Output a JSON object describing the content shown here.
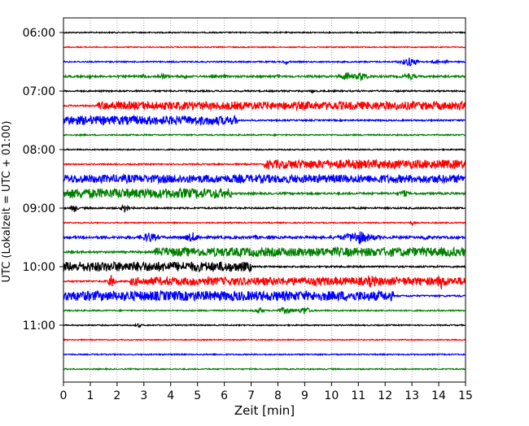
{
  "chart_data": {
    "type": "line",
    "title": "",
    "xlabel": "Zeit  [min]",
    "ylabel": "UTC (Lokalzeit = UTC + 01:00)",
    "xlim": [
      0,
      15
    ],
    "x_ticks": [
      "0",
      "1",
      "2",
      "3",
      "4",
      "5",
      "6",
      "7",
      "8",
      "9",
      "10",
      "11",
      "12",
      "13",
      "14",
      "15"
    ],
    "y_ticks": [
      "06:00",
      "07:00",
      "08:00",
      "09:00",
      "10:00",
      "11:00"
    ],
    "grid": {
      "x": "dotted",
      "y": false
    },
    "colors": [
      "#000000",
      "#ff0000",
      "#0000ff",
      "#008000"
    ],
    "traces": [
      {
        "time": "06:00",
        "color": "#000000",
        "base": 0.7,
        "events": []
      },
      {
        "time": "06:15",
        "color": "#ff0000",
        "base": 0.6,
        "events": []
      },
      {
        "time": "06:30",
        "color": "#0000ff",
        "base": 0.8,
        "events": [
          [
            8.3,
            0.15,
            3
          ],
          [
            12.9,
            0.3,
            6
          ],
          [
            13.1,
            0.2,
            4
          ],
          [
            13.9,
            0.15,
            3
          ],
          [
            14.3,
            0.1,
            3
          ]
        ]
      },
      {
        "time": "06:45",
        "color": "#008000",
        "base": 1.2,
        "events": [
          [
            1.0,
            0.1,
            3
          ],
          [
            3.0,
            0.15,
            3
          ],
          [
            3.7,
            0.2,
            4
          ],
          [
            4.5,
            0.15,
            3
          ],
          [
            6.0,
            0.12,
            3
          ],
          [
            8.0,
            0.1,
            3
          ],
          [
            9.2,
            0.1,
            3
          ],
          [
            10.6,
            0.3,
            6
          ],
          [
            11.1,
            0.3,
            6
          ],
          [
            12.9,
            0.25,
            5
          ]
        ]
      },
      {
        "time": "07:00",
        "color": "#000000",
        "base": 0.9,
        "events": [
          [
            9.3,
            0.12,
            2.5
          ]
        ]
      },
      {
        "time": "07:15",
        "color": "#ff0000",
        "base": 0.9,
        "events": [],
        "bands": [
          [
            1.25,
            15,
            5
          ]
        ]
      },
      {
        "time": "07:30",
        "color": "#0000ff",
        "base": 0.9,
        "events": [],
        "bands": [
          [
            0,
            6.5,
            5.5
          ]
        ]
      },
      {
        "time": "07:45",
        "color": "#008000",
        "base": 0.8,
        "events": []
      },
      {
        "time": "08:00",
        "color": "#000000",
        "base": 0.7,
        "events": []
      },
      {
        "time": "08:15",
        "color": "#ff0000",
        "base": 0.8,
        "events": [],
        "bands": [
          [
            7.5,
            15,
            5.5
          ]
        ]
      },
      {
        "time": "08:30",
        "color": "#0000ff",
        "base": 0.9,
        "events": [],
        "bands": [
          [
            0,
            15,
            5
          ]
        ]
      },
      {
        "time": "08:45",
        "color": "#008000",
        "base": 1.2,
        "events": [
          [
            12.7,
            0.2,
            5
          ]
        ],
        "bands": [
          [
            0,
            6.3,
            6
          ]
        ]
      },
      {
        "time": "09:00",
        "color": "#000000",
        "base": 1.0,
        "events": [
          [
            0.4,
            0.1,
            7
          ],
          [
            2.3,
            0.12,
            7
          ]
        ]
      },
      {
        "time": "09:15",
        "color": "#ff0000",
        "base": 0.7,
        "events": [
          [
            13.0,
            0.1,
            3
          ]
        ]
      },
      {
        "time": "09:30",
        "color": "#0000ff",
        "base": 1.5,
        "events": [
          [
            3.2,
            0.35,
            7
          ],
          [
            4.8,
            0.3,
            7
          ],
          [
            7.2,
            0.1,
            4
          ],
          [
            11.0,
            0.6,
            9
          ],
          [
            13.5,
            0.2,
            4
          ]
        ]
      },
      {
        "time": "09:45",
        "color": "#008000",
        "base": 1.2,
        "events": [],
        "bands": [
          [
            3.4,
            15,
            5.5
          ]
        ]
      },
      {
        "time": "10:00",
        "color": "#000000",
        "base": 1.0,
        "events": [
          [
            4.5,
            0.15,
            5
          ]
        ],
        "bands": [
          [
            0,
            7.0,
            6
          ]
        ]
      },
      {
        "time": "10:15",
        "color": "#ff0000",
        "base": 1.0,
        "events": [
          [
            1.8,
            0.12,
            9
          ],
          [
            11.5,
            0.3,
            9
          ],
          [
            13.0,
            0.15,
            6
          ],
          [
            14.1,
            0.3,
            10
          ]
        ],
        "bands": [
          [
            2.5,
            15,
            5
          ]
        ]
      },
      {
        "time": "10:30",
        "color": "#0000ff",
        "base": 1.0,
        "events": [
          [
            1.8,
            0.12,
            7
          ]
        ],
        "bands": [
          [
            0,
            12.3,
            6
          ]
        ]
      },
      {
        "time": "10:45",
        "color": "#008000",
        "base": 0.8,
        "events": [
          [
            7.3,
            0.15,
            5
          ],
          [
            8.3,
            0.3,
            5
          ],
          [
            9.0,
            0.2,
            6
          ]
        ]
      },
      {
        "time": "11:00",
        "color": "#000000",
        "base": 0.7,
        "events": [
          [
            2.8,
            0.12,
            3
          ]
        ]
      },
      {
        "time": "11:15",
        "color": "#ff0000",
        "base": 0.6,
        "events": []
      },
      {
        "time": "11:30",
        "color": "#0000ff",
        "base": 0.7,
        "events": []
      },
      {
        "time": "11:45",
        "color": "#008000",
        "base": 0.7,
        "events": []
      }
    ]
  }
}
